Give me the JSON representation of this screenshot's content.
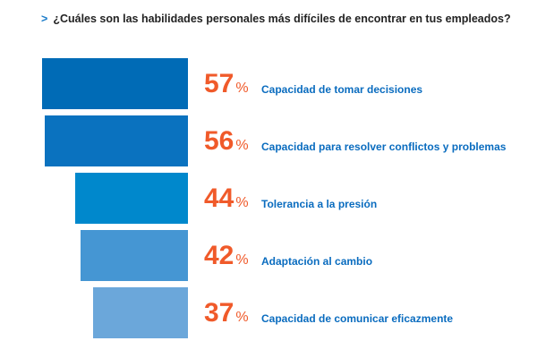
{
  "chart_data": {
    "type": "bar",
    "orientation": "horizontal",
    "title": "¿Cuáles son las habilidades personales más difíciles de encontrar en tus empleados?",
    "categories": [
      "Capacidad de tomar decisiones",
      "Capacidad para resolver conflictos y problemas",
      "Tolerancia a la presión",
      "Adaptación al cambio",
      "Capacidad de comunicar eficazmente"
    ],
    "values": [
      57,
      56,
      44,
      42,
      37
    ],
    "unit": "%",
    "bar_colors": [
      "#006bb6",
      "#0a72bf",
      "#0088cc",
      "#4596d3",
      "#6ba7da"
    ],
    "value_color": "#f05a2a",
    "label_color": "#0a6cbf",
    "grid": false
  }
}
